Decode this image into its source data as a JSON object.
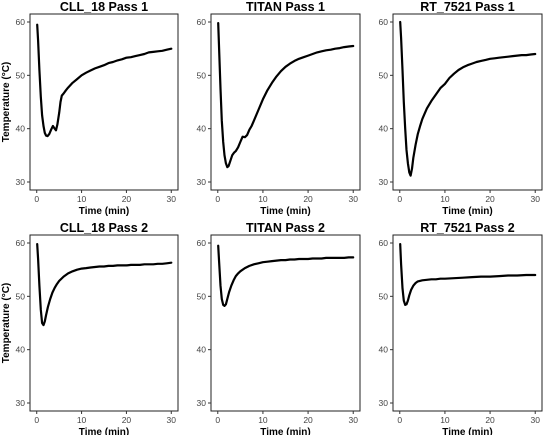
{
  "chart_data": [
    {
      "type": "line",
      "title": "CLL_18 Pass 1",
      "xlabel": "Time (min)",
      "ylabel": "Temperature (°C)",
      "xlim": [
        -1.5,
        31.5
      ],
      "ylim": [
        28.5,
        61.5
      ],
      "xticks": [
        0,
        10,
        20,
        30
      ],
      "yticks": [
        30,
        40,
        50,
        60
      ],
      "series": [
        {
          "x": [
            0.1,
            0.3,
            0.6,
            0.9,
            1.2,
            1.5,
            1.8,
            2.1,
            2.4,
            2.8,
            3.2,
            3.6,
            4.0,
            4.3,
            4.6,
            5.0,
            5.3,
            5.6,
            6.0,
            6.5,
            7.0,
            8.0,
            9.0,
            10,
            11,
            12,
            13,
            14,
            15,
            16,
            17,
            18,
            19,
            20,
            21,
            22,
            23,
            24,
            25,
            26,
            27,
            28,
            29,
            30
          ],
          "y": [
            59.5,
            56.5,
            51.0,
            46.0,
            42.5,
            40.5,
            39.2,
            38.7,
            38.6,
            39.0,
            39.8,
            40.5,
            40.0,
            39.7,
            40.8,
            43.0,
            45.0,
            46.2,
            46.6,
            47.2,
            47.7,
            48.6,
            49.3,
            50.0,
            50.5,
            50.9,
            51.3,
            51.6,
            51.9,
            52.3,
            52.5,
            52.8,
            53.0,
            53.3,
            53.4,
            53.6,
            53.8,
            54.0,
            54.3,
            54.4,
            54.5,
            54.6,
            54.8,
            55.0
          ]
        }
      ]
    },
    {
      "type": "line",
      "title": "TITAN Pass 1",
      "xlabel": "Time (min)",
      "ylabel": "",
      "xlim": [
        -1.5,
        31.5
      ],
      "ylim": [
        28.5,
        61.5
      ],
      "xticks": [
        0,
        10,
        20,
        30
      ],
      "yticks": [
        30,
        40,
        50,
        60
      ],
      "series": [
        {
          "x": [
            0.1,
            0.3,
            0.6,
            0.9,
            1.2,
            1.5,
            1.8,
            2.1,
            2.4,
            2.8,
            3.2,
            3.6,
            4.0,
            4.5,
            5.0,
            5.5,
            6.0,
            6.5,
            7.0,
            7.5,
            8.0,
            9.0,
            10,
            11,
            12,
            13,
            14,
            15,
            16,
            17,
            18,
            19,
            20,
            21,
            22,
            23,
            24,
            25,
            26,
            27,
            28,
            29,
            30
          ],
          "y": [
            59.8,
            55.0,
            47.5,
            41.5,
            37.5,
            35.0,
            33.5,
            32.8,
            33.0,
            34.0,
            35.0,
            35.5,
            35.8,
            36.5,
            37.5,
            38.5,
            38.4,
            38.8,
            39.8,
            40.5,
            41.5,
            43.5,
            45.5,
            47.2,
            48.6,
            49.8,
            50.8,
            51.6,
            52.2,
            52.7,
            53.1,
            53.4,
            53.7,
            54.0,
            54.3,
            54.5,
            54.7,
            54.8,
            55.0,
            55.1,
            55.3,
            55.4,
            55.5
          ]
        }
      ]
    },
    {
      "type": "line",
      "title": "RT_7521 Pass 1",
      "xlabel": "Time (min)",
      "ylabel": "",
      "xlim": [
        -1.5,
        31.5
      ],
      "ylim": [
        28.5,
        61.5
      ],
      "xticks": [
        0,
        10,
        20,
        30
      ],
      "yticks": [
        30,
        40,
        50,
        60
      ],
      "series": [
        {
          "x": [
            0.1,
            0.3,
            0.6,
            0.9,
            1.2,
            1.5,
            1.8,
            2.1,
            2.4,
            2.7,
            3.0,
            3.5,
            4.0,
            4.5,
            5.0,
            5.5,
            6.0,
            7.0,
            8.0,
            9.0,
            10,
            11,
            12,
            13,
            14,
            15,
            16,
            17,
            18,
            19,
            20,
            21,
            22,
            23,
            24,
            25,
            26,
            27,
            28,
            29,
            30
          ],
          "y": [
            60.0,
            57.0,
            51.0,
            45.0,
            40.0,
            36.0,
            33.5,
            31.8,
            31.2,
            32.5,
            34.5,
            37.0,
            39.0,
            40.5,
            41.8,
            42.8,
            43.8,
            45.2,
            46.4,
            47.6,
            48.4,
            49.5,
            50.3,
            51.0,
            51.5,
            51.9,
            52.2,
            52.5,
            52.7,
            52.9,
            53.1,
            53.2,
            53.3,
            53.4,
            53.5,
            53.6,
            53.7,
            53.8,
            53.8,
            53.9,
            54.0
          ]
        }
      ]
    },
    {
      "type": "line",
      "title": "CLL_18 Pass 2",
      "xlabel": "Time (min)",
      "ylabel": "Temperature (°C)",
      "xlim": [
        -1.5,
        31.5
      ],
      "ylim": [
        28.5,
        61.5
      ],
      "xticks": [
        0,
        10,
        20,
        30
      ],
      "yticks": [
        30,
        40,
        50,
        60
      ],
      "series": [
        {
          "x": [
            0.1,
            0.3,
            0.6,
            0.9,
            1.2,
            1.5,
            1.8,
            2.1,
            2.5,
            3.0,
            3.5,
            4.0,
            4.5,
            5.0,
            6.0,
            7.0,
            8.0,
            9.0,
            10,
            11,
            12,
            13,
            14,
            15,
            16,
            17,
            18,
            19,
            20,
            21,
            22,
            23,
            24,
            25,
            26,
            27,
            28,
            29,
            30
          ],
          "y": [
            59.8,
            57.0,
            52.0,
            47.5,
            45.0,
            44.6,
            45.3,
            46.5,
            48.0,
            49.5,
            50.7,
            51.6,
            52.3,
            52.9,
            53.7,
            54.3,
            54.7,
            55.0,
            55.2,
            55.3,
            55.4,
            55.5,
            55.6,
            55.6,
            55.7,
            55.7,
            55.8,
            55.8,
            55.8,
            55.9,
            55.9,
            55.9,
            56.0,
            56.0,
            56.0,
            56.1,
            56.1,
            56.2,
            56.3
          ]
        }
      ]
    },
    {
      "type": "line",
      "title": "TITAN Pass 2",
      "xlabel": "Time (min)",
      "ylabel": "",
      "xlim": [
        -1.5,
        31.5
      ],
      "ylim": [
        28.5,
        61.5
      ],
      "xticks": [
        0,
        10,
        20,
        30
      ],
      "yticks": [
        30,
        40,
        50,
        60
      ],
      "series": [
        {
          "x": [
            0.1,
            0.3,
            0.6,
            0.9,
            1.2,
            1.5,
            1.8,
            2.1,
            2.5,
            3.0,
            3.5,
            4.0,
            4.5,
            5.0,
            6.0,
            7.0,
            8.0,
            9.0,
            10,
            11,
            12,
            13,
            14,
            15,
            16,
            17,
            18,
            19,
            20,
            21,
            22,
            23,
            24,
            25,
            26,
            27,
            28,
            29,
            30
          ],
          "y": [
            59.5,
            56.5,
            52.0,
            49.5,
            48.4,
            48.2,
            48.5,
            49.5,
            50.8,
            52.0,
            53.0,
            53.8,
            54.3,
            54.7,
            55.3,
            55.7,
            56.0,
            56.2,
            56.4,
            56.5,
            56.6,
            56.7,
            56.8,
            56.8,
            56.9,
            56.9,
            57.0,
            57.0,
            57.0,
            57.1,
            57.1,
            57.1,
            57.2,
            57.2,
            57.2,
            57.2,
            57.2,
            57.3,
            57.3
          ]
        }
      ]
    },
    {
      "type": "line",
      "title": "RT_7521 Pass 2",
      "xlabel": "Time (min)",
      "ylabel": "",
      "xlim": [
        -1.5,
        31.5
      ],
      "ylim": [
        28.5,
        61.5
      ],
      "xticks": [
        0,
        10,
        20,
        30
      ],
      "yticks": [
        30,
        40,
        50,
        60
      ],
      "series": [
        {
          "x": [
            0.1,
            0.3,
            0.6,
            0.9,
            1.2,
            1.5,
            1.8,
            2.1,
            2.5,
            3.0,
            3.5,
            4.0,
            5.0,
            6.0,
            7.0,
            8.0,
            9.0,
            10,
            12,
            14,
            16,
            18,
            20,
            22,
            24,
            26,
            28,
            30
          ],
          "y": [
            59.8,
            56.0,
            51.5,
            49.2,
            48.4,
            48.5,
            49.2,
            50.2,
            51.2,
            52.0,
            52.5,
            52.8,
            53.0,
            53.1,
            53.2,
            53.2,
            53.3,
            53.3,
            53.4,
            53.5,
            53.6,
            53.7,
            53.7,
            53.8,
            53.9,
            53.9,
            54.0,
            54.0
          ]
        }
      ]
    }
  ]
}
